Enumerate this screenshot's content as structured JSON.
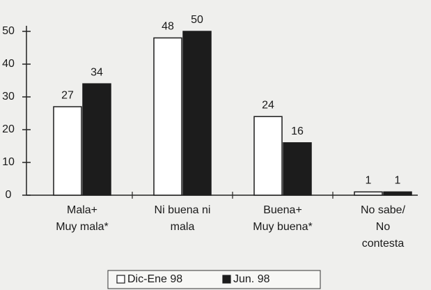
{
  "chart_data": {
    "type": "bar",
    "categories": [
      [
        "Mala+",
        "Muy mala*"
      ],
      [
        "Ni buena ni",
        "mala"
      ],
      [
        "Buena+",
        "Muy buena*"
      ],
      [
        "No sabe/",
        "No",
        "contesta"
      ]
    ],
    "series": [
      {
        "name": "Dic-Ene 98",
        "color": "#ffffff",
        "values": [
          27,
          48,
          24,
          1
        ]
      },
      {
        "name": "Jun. 98",
        "color": "#1c1c1c",
        "values": [
          34,
          50,
          16,
          1
        ]
      }
    ],
    "ylim": [
      0,
      50
    ],
    "yticks": [
      0,
      10,
      20,
      30,
      40,
      50
    ]
  }
}
